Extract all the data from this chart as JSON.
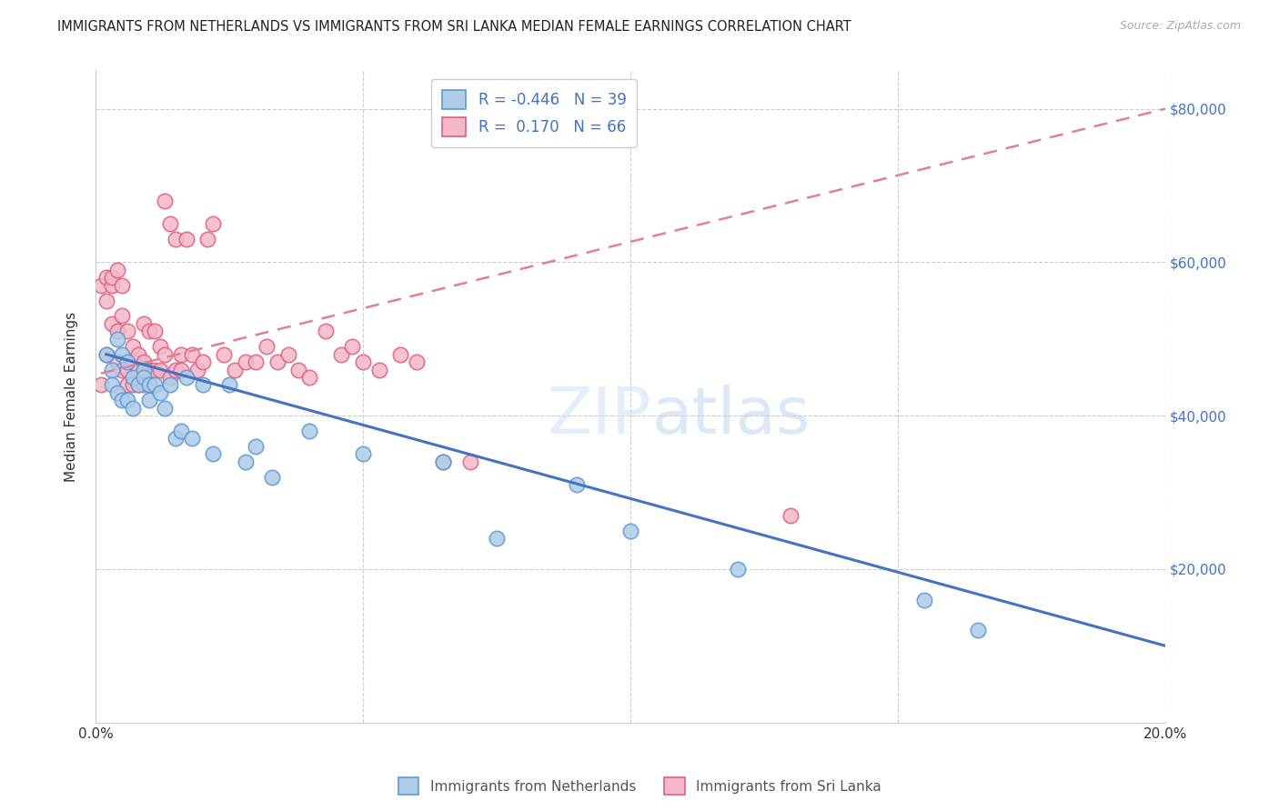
{
  "title": "IMMIGRANTS FROM NETHERLANDS VS IMMIGRANTS FROM SRI LANKA MEDIAN FEMALE EARNINGS CORRELATION CHART",
  "source": "Source: ZipAtlas.com",
  "ylabel": "Median Female Earnings",
  "xlim": [
    0.0,
    0.2
  ],
  "ylim": [
    0,
    85000
  ],
  "yticks": [
    0,
    20000,
    40000,
    60000,
    80000
  ],
  "xticks": [
    0.0,
    0.05,
    0.1,
    0.15,
    0.2
  ],
  "xtick_labels": [
    "0.0%",
    "",
    "",
    "",
    "20.0%"
  ],
  "right_ytick_labels": [
    "",
    "$20,000",
    "$40,000",
    "$60,000",
    "$80,000"
  ],
  "netherlands_color": "#aecce8",
  "netherlands_edge_color": "#5b9bd5",
  "srilanka_color": "#f4b8c8",
  "srilanka_edge_color": "#e06080",
  "netherlands_line_color": "#4472C4",
  "srilanka_line_color": "#e08090",
  "background_color": "#ffffff",
  "grid_color": "#cccccc",
  "legend_R1": "R = -0.446",
  "legend_N1": "N = 39",
  "legend_R2": "R =  0.170",
  "legend_N2": "N = 66",
  "nl_line_x0": 0.002,
  "nl_line_y0": 48000,
  "nl_line_x1": 0.2,
  "nl_line_y1": 10000,
  "sl_line_x0": 0.001,
  "sl_line_y0": 45500,
  "sl_line_x1": 0.2,
  "sl_line_y1": 80000,
  "netherlands_x": [
    0.002,
    0.003,
    0.003,
    0.004,
    0.004,
    0.005,
    0.005,
    0.006,
    0.006,
    0.007,
    0.007,
    0.008,
    0.009,
    0.009,
    0.01,
    0.01,
    0.011,
    0.012,
    0.013,
    0.014,
    0.015,
    0.016,
    0.017,
    0.018,
    0.02,
    0.022,
    0.025,
    0.028,
    0.03,
    0.033,
    0.04,
    0.05,
    0.065,
    0.075,
    0.09,
    0.1,
    0.12,
    0.155,
    0.165
  ],
  "netherlands_y": [
    48000,
    46000,
    44000,
    50000,
    43000,
    48000,
    42000,
    47000,
    42000,
    45000,
    41000,
    44000,
    46000,
    45000,
    44000,
    42000,
    44000,
    43000,
    41000,
    44000,
    37000,
    38000,
    45000,
    37000,
    44000,
    35000,
    44000,
    34000,
    36000,
    32000,
    38000,
    35000,
    34000,
    24000,
    31000,
    25000,
    20000,
    16000,
    12000
  ],
  "srilanka_x": [
    0.001,
    0.001,
    0.002,
    0.002,
    0.002,
    0.003,
    0.003,
    0.003,
    0.004,
    0.004,
    0.004,
    0.005,
    0.005,
    0.005,
    0.006,
    0.006,
    0.006,
    0.007,
    0.007,
    0.007,
    0.008,
    0.008,
    0.008,
    0.009,
    0.009,
    0.009,
    0.01,
    0.01,
    0.01,
    0.011,
    0.011,
    0.012,
    0.012,
    0.013,
    0.013,
    0.014,
    0.014,
    0.015,
    0.015,
    0.016,
    0.016,
    0.017,
    0.018,
    0.019,
    0.02,
    0.021,
    0.022,
    0.024,
    0.026,
    0.028,
    0.03,
    0.032,
    0.034,
    0.036,
    0.038,
    0.04,
    0.043,
    0.046,
    0.048,
    0.05,
    0.053,
    0.057,
    0.06,
    0.065,
    0.07,
    0.13
  ],
  "srilanka_y": [
    44000,
    57000,
    48000,
    58000,
    55000,
    57000,
    52000,
    58000,
    47000,
    51000,
    59000,
    57000,
    53000,
    46000,
    51000,
    46000,
    44000,
    49000,
    47000,
    44000,
    48000,
    46000,
    44000,
    52000,
    47000,
    44000,
    51000,
    46000,
    44000,
    51000,
    46000,
    49000,
    46000,
    68000,
    48000,
    45000,
    65000,
    46000,
    63000,
    48000,
    46000,
    63000,
    48000,
    46000,
    47000,
    63000,
    65000,
    48000,
    46000,
    47000,
    47000,
    49000,
    47000,
    48000,
    46000,
    45000,
    51000,
    48000,
    49000,
    47000,
    46000,
    48000,
    47000,
    34000,
    34000,
    27000
  ]
}
